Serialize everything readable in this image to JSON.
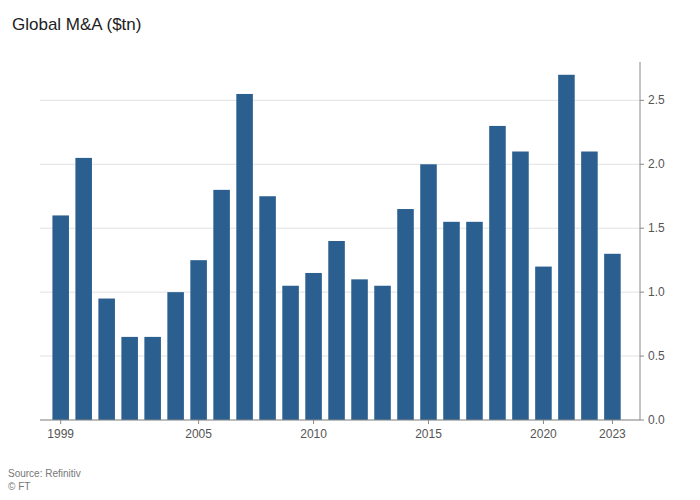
{
  "chart_data": {
    "type": "bar",
    "title": "Global M&A ($tn)",
    "annotations": [
      "Source: Refinitiv",
      "© FT"
    ],
    "x": [
      1999,
      2000,
      2001,
      2002,
      2003,
      2004,
      2005,
      2006,
      2007,
      2008,
      2009,
      2010,
      2011,
      2012,
      2013,
      2014,
      2015,
      2016,
      2017,
      2018,
      2019,
      2020,
      2021,
      2022,
      2023
    ],
    "values": [
      1.6,
      2.05,
      0.95,
      0.65,
      0.65,
      1.0,
      1.25,
      1.8,
      2.55,
      1.75,
      1.05,
      1.15,
      1.4,
      1.1,
      1.05,
      1.65,
      2.0,
      1.55,
      1.55,
      2.3,
      2.1,
      1.2,
      2.7,
      2.1,
      1.3
    ],
    "color": "#2a5f8f",
    "xlim": [
      1998.1,
      2024.2
    ],
    "xticks": [
      1999,
      2005,
      2010,
      2015,
      2020,
      2023
    ],
    "ylim": [
      0,
      2.8
    ],
    "yticks": [
      {
        "value": 0,
        "label": "0.0"
      },
      0.5,
      {
        "value": 1.0,
        "label": "1.0"
      },
      1.5,
      {
        "value": 2.0,
        "label": "2.0"
      },
      2.5
    ],
    "grid": true
  }
}
